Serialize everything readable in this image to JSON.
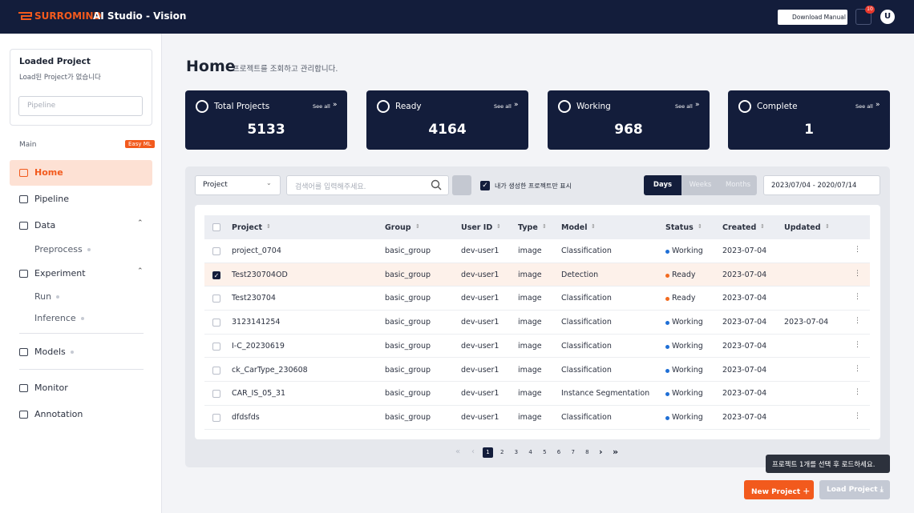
{
  "header": {
    "brand": "SURROMIND",
    "product": "AI Studio - Vision",
    "download": "Download Manual",
    "notifications": "10",
    "avatar": "U"
  },
  "sidebar": {
    "loaded_title": "Loaded Project",
    "loaded_subtitle": "Load된 Project가 없습니다",
    "pipeline_placeholder": "Pipeline",
    "section": "Main",
    "badge": "Easy ML",
    "menu": [
      "Home",
      "Pipeline",
      "Data",
      "Preprocess",
      "Experiment",
      "Run",
      "Inference",
      "Models",
      "Monitor",
      "Annotation"
    ]
  },
  "page": {
    "title": "Home",
    "subtitle": "프로젝트를 조회하고 관리합니다."
  },
  "cards": [
    {
      "label": "Total Projects",
      "value": 5133,
      "link": "See all"
    },
    {
      "label": "Ready",
      "value": 4164,
      "link": "See all"
    },
    {
      "label": "Working",
      "value": 968,
      "link": "See all"
    },
    {
      "label": "Complete",
      "value": 1,
      "link": "See all"
    }
  ],
  "filters": {
    "select": "Project",
    "search_placeholder": "검색어를 입력해주세요.",
    "mine_only": "내가 생성한 프로젝트만 표시",
    "periods": [
      "Days",
      "Weeks",
      "Months"
    ],
    "date_range": "2023/07/04 - 2020/07/14"
  },
  "table": {
    "columns": [
      "Project",
      "Group",
      "User ID",
      "Type",
      "Model",
      "Status",
      "Created",
      "Updated"
    ],
    "status_colors": {
      "Working": "#1f6fd6",
      "Ready": "#f26a1f"
    },
    "rows": [
      {
        "checked": false,
        "cells": [
          "project_0704",
          "basic_group",
          "dev-user1",
          "image",
          "Classification",
          "Working",
          "2023-07-04",
          null
        ]
      },
      {
        "checked": true,
        "cells": [
          "Test230704OD",
          "basic_group",
          "dev-user1",
          "image",
          "Detection",
          "Ready",
          "2023-07-04",
          null
        ]
      },
      {
        "checked": false,
        "cells": [
          "Test230704",
          "basic_group",
          "dev-user1",
          "image",
          "Classification",
          "Ready",
          "2023-07-04",
          null
        ]
      },
      {
        "checked": false,
        "cells": [
          "3123141254",
          "basic_group",
          "dev-user1",
          "image",
          "Classification",
          "Working",
          "2023-07-04",
          "2023-07-04"
        ]
      },
      {
        "checked": false,
        "cells": [
          "I-C_20230619",
          "basic_group",
          "dev-user1",
          "image",
          "Classification",
          "Working",
          "2023-07-04",
          null
        ]
      },
      {
        "checked": false,
        "cells": [
          "ck_CarType_230608",
          "basic_group",
          "dev-user1",
          "image",
          "Classification",
          "Working",
          "2023-07-04",
          null
        ]
      },
      {
        "checked": false,
        "cells": [
          "CAR_IS_05_31",
          "basic_group",
          "dev-user1",
          "image",
          "Instance Segmentation",
          "Working",
          "2023-07-04",
          null
        ]
      },
      {
        "checked": false,
        "cells": [
          "dfdsfds",
          "basic_group",
          "dev-user1",
          "image",
          "Classification",
          "Working",
          "2023-07-04",
          null
        ]
      }
    ]
  },
  "pagination": {
    "pages": [
      1,
      2,
      3,
      4,
      5,
      6,
      7,
      8
    ],
    "current": 0
  },
  "tooltip": "프로젝트 1개를 선택 후 로드하세요.",
  "actions": {
    "new_project": "New Project",
    "load_project": "Load Project"
  }
}
